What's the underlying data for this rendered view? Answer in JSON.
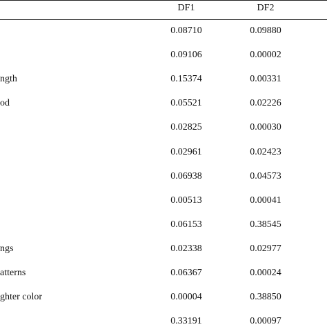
{
  "table": {
    "header": [
      "DF1",
      "DF2"
    ],
    "rows": [
      {
        "values": [
          "0.08710",
          "0.09880"
        ]
      },
      {
        "values": [
          "0.09106",
          "0.00002"
        ]
      },
      {
        "label": "ngth",
        "values": [
          "0.15374",
          "0.00331"
        ]
      },
      {
        "label": "od",
        "values": [
          "0.05521",
          "0.02226"
        ]
      },
      {
        "values": [
          "0.02825",
          "0.00030"
        ]
      },
      {
        "values": [
          "0.02961",
          "0.02423"
        ]
      },
      {
        "values": [
          "0.06938",
          "0.04573"
        ]
      },
      {
        "values": [
          "0.00513",
          "0.00041"
        ]
      },
      {
        "values": [
          "0.06153",
          "0.38545"
        ]
      },
      {
        "label": "ngs",
        "values": [
          "0.02338",
          "0.02977"
        ]
      },
      {
        "label": "atterns",
        "values": [
          "0.06367",
          "0.00024"
        ]
      },
      {
        "label": "ghter color",
        "values": [
          "0.00004",
          "0.38850"
        ]
      },
      {
        "values": [
          "0.33191",
          "0.00097"
        ]
      }
    ]
  }
}
